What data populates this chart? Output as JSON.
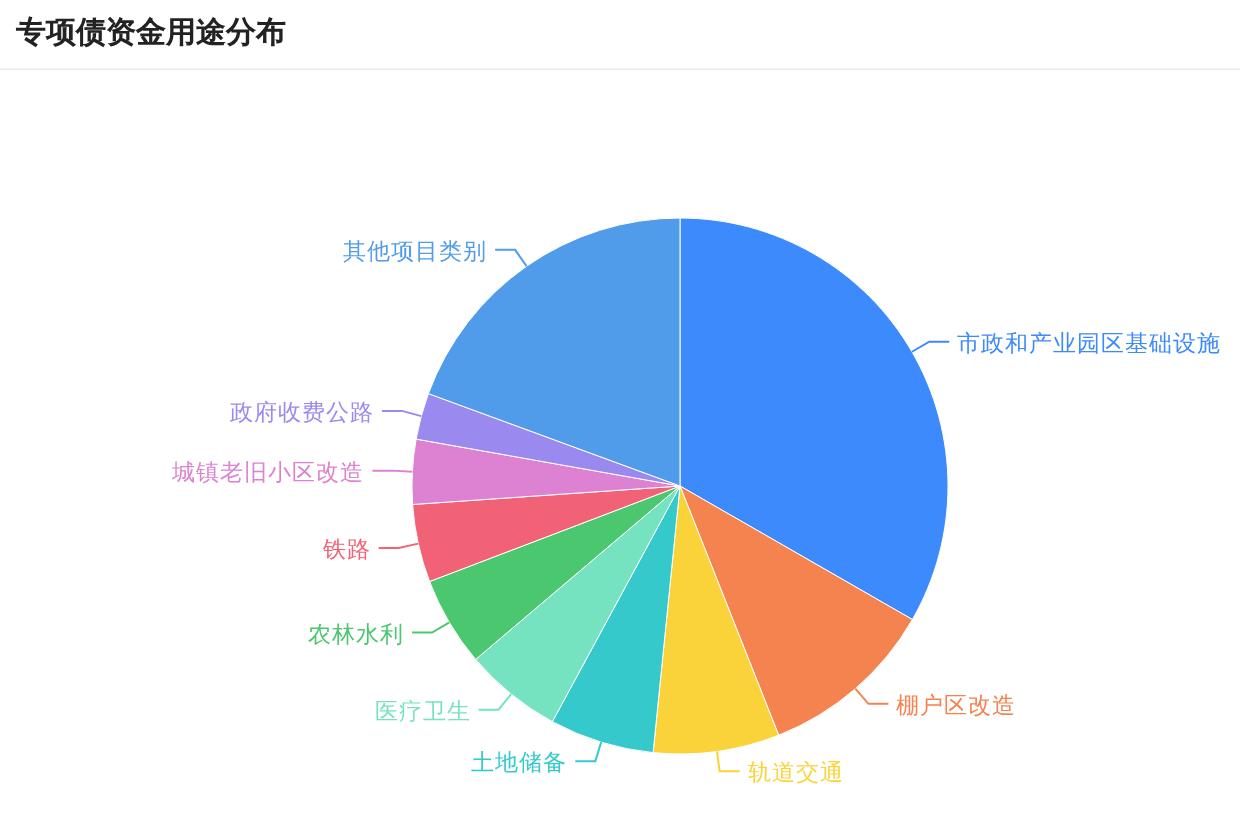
{
  "chart_data": {
    "type": "pie",
    "title": "专项债资金用途分布",
    "categories": [
      "市政和产业园区基础设施",
      "棚户区改造",
      "轨道交通",
      "土地储备",
      "医疗卫生",
      "农林水利",
      "铁路",
      "城镇老旧小区改造",
      "政府收费公路",
      "其他项目类别"
    ],
    "values": [
      33.3,
      10.7,
      7.6,
      6.3,
      5.9,
      5.4,
      4.7,
      3.9,
      2.8,
      19.4
    ],
    "colors": [
      "#3d8afd",
      "#f5834f",
      "#fad33b",
      "#35c9cb",
      "#76e3c0",
      "#4bc86f",
      "#f26276",
      "#dd82d2",
      "#9a8af0",
      "#509bea"
    ]
  }
}
